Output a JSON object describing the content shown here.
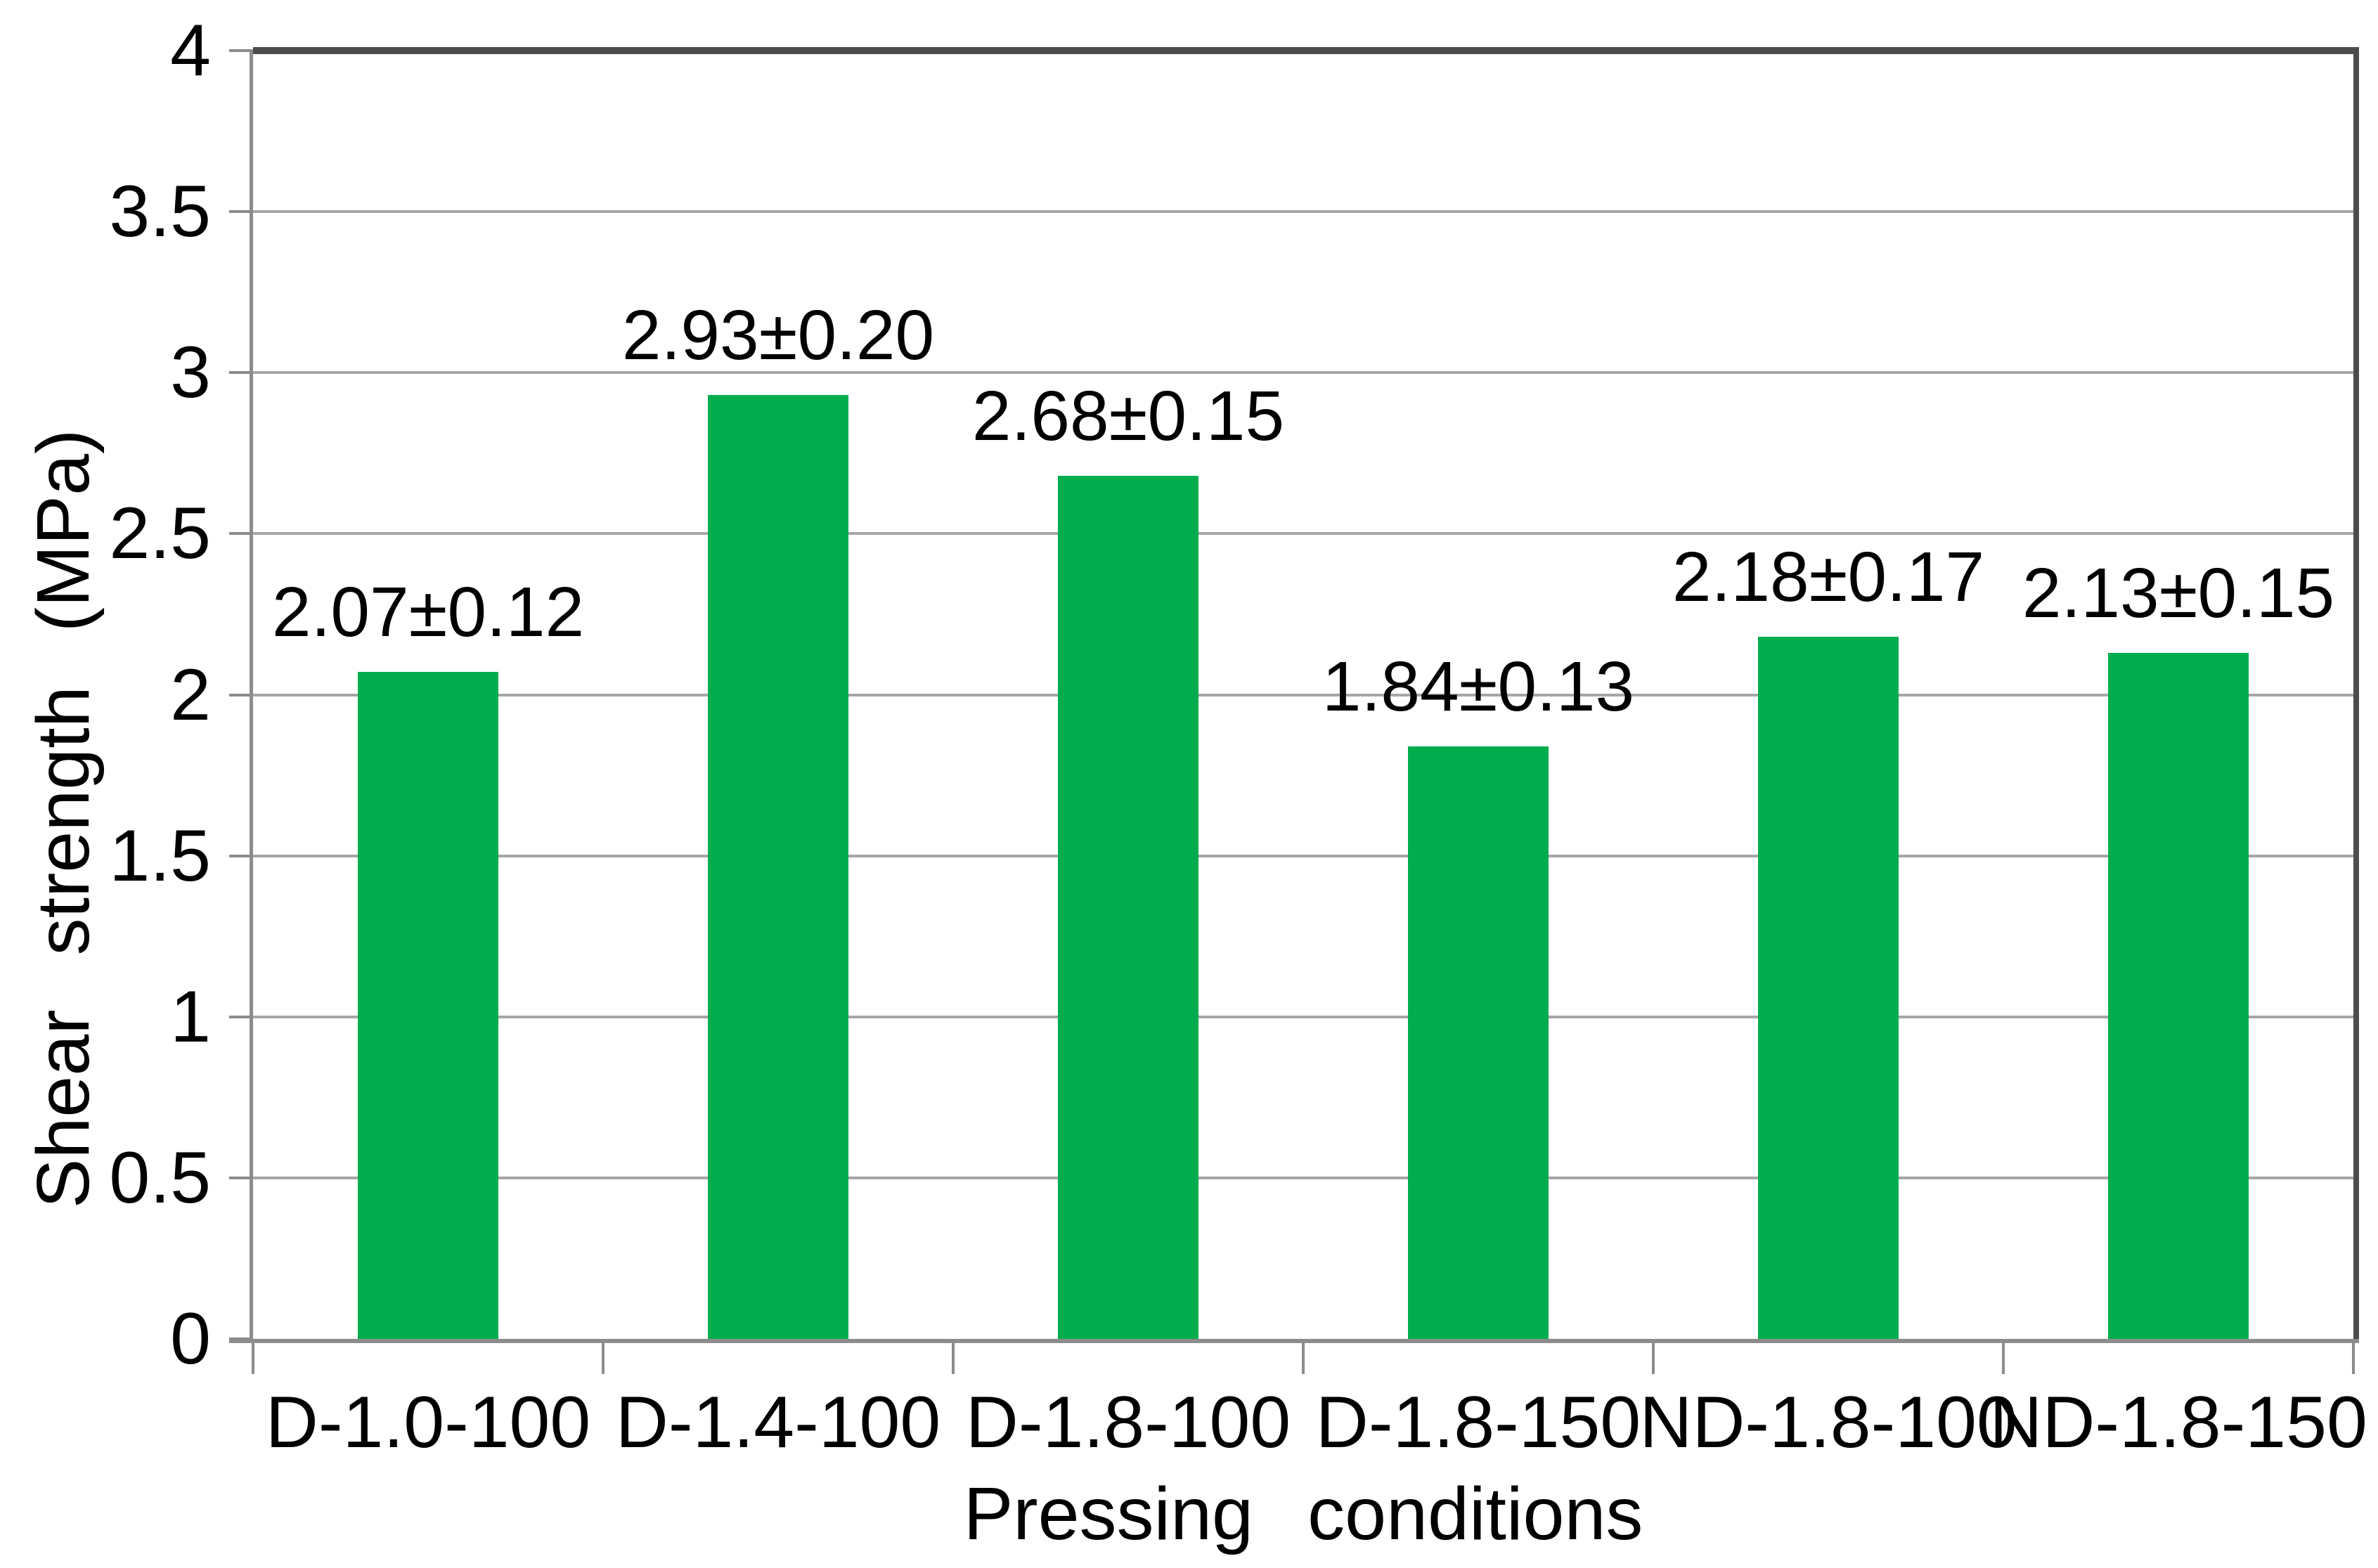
{
  "chart_data": {
    "type": "bar",
    "title": "",
    "categories": [
      "D-1.0-100",
      "D-1.4-100",
      "D-1.8-100",
      "D-1.8-150",
      "ND-1.8-100",
      "ND-1.8-150"
    ],
    "values": [
      2.07,
      2.93,
      2.68,
      1.84,
      2.18,
      2.13
    ],
    "errors": [
      0.12,
      0.2,
      0.15,
      0.13,
      0.17,
      0.15
    ],
    "bar_labels": [
      "2.07±0.12",
      "2.93±0.20",
      "2.68±0.15",
      "1.84±0.13",
      "2.18±0.17",
      "2.13±0.15"
    ],
    "xlabel": "Pressing conditions",
    "ylabel": "Shear strength (MPa)",
    "ylim": [
      0,
      4
    ],
    "y_ticks": [
      4,
      3.5,
      3,
      2.5,
      2,
      1.5,
      1,
      0.5,
      0
    ],
    "y_tick_labels": [
      "4",
      "3.5",
      "3",
      "2.5",
      "2",
      "1.5",
      "1",
      "0.5",
      "0"
    ],
    "grid": "horizontal",
    "legend": "none",
    "colors": {
      "bar": "#00AD4E",
      "gridline": "#A6A6A6",
      "axis": "#8C8C8C",
      "border": "#4C4C4C",
      "text": "#000000",
      "background": "#FFFFFF"
    }
  }
}
